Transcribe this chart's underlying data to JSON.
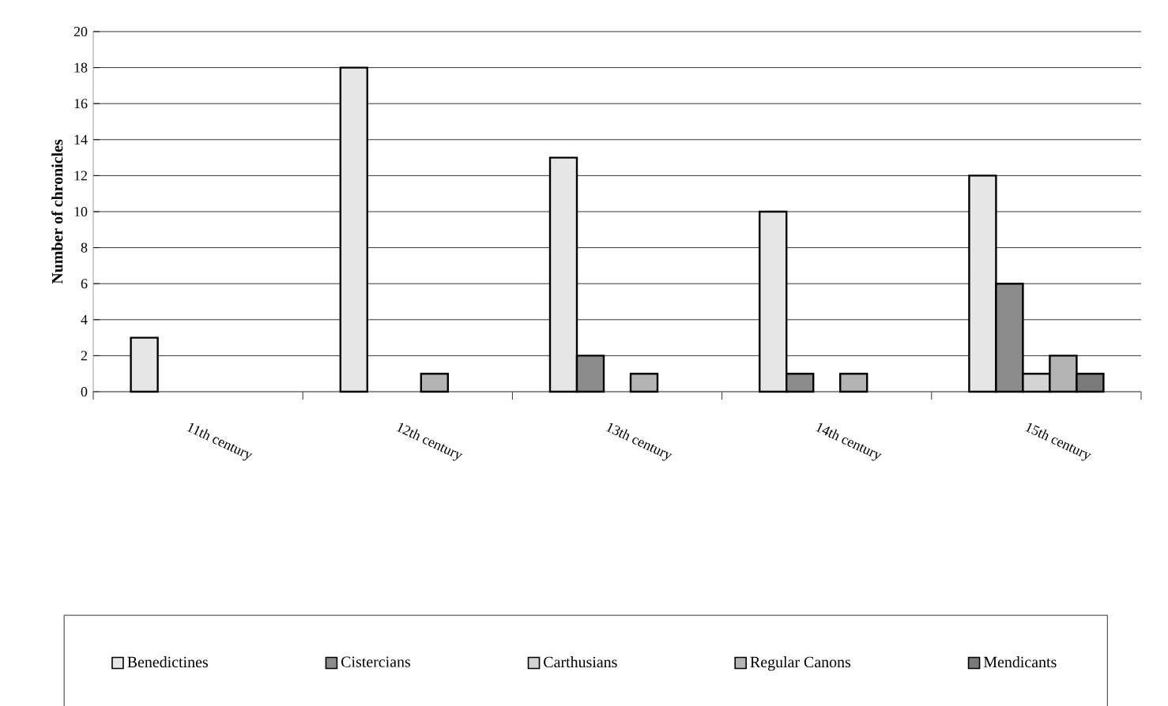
{
  "chart_data": {
    "type": "bar",
    "ylabel": "**Number of chronicles**",
    "categories": [
      "11th century",
      "12th century",
      "13th century",
      "14th century",
      "15th century"
    ],
    "series": [
      {
        "name": "Benedictines",
        "color": "#e6e6e6",
        "values": [
          3,
          18,
          13,
          10,
          12
        ]
      },
      {
        "name": "Cistercians",
        "color": "#8c8c8c",
        "values": [
          null,
          null,
          2,
          1,
          6
        ]
      },
      {
        "name": "Carthusians",
        "color": "#d4d4d4",
        "values": [
          null,
          null,
          null,
          null,
          1
        ]
      },
      {
        "name": "Regular Canons",
        "color": "#b4b4b4",
        "values": [
          null,
          1,
          1,
          1,
          2
        ]
      },
      {
        "name": "Mendicants",
        "color": "#7a7a7a",
        "values": [
          null,
          null,
          null,
          null,
          1
        ]
      }
    ],
    "ylim": [
      0,
      20
    ],
    "yticks": [
      0,
      2,
      4,
      6,
      8,
      10,
      12,
      14,
      16,
      18,
      20
    ],
    "grid": "y",
    "legend": "bottom"
  }
}
